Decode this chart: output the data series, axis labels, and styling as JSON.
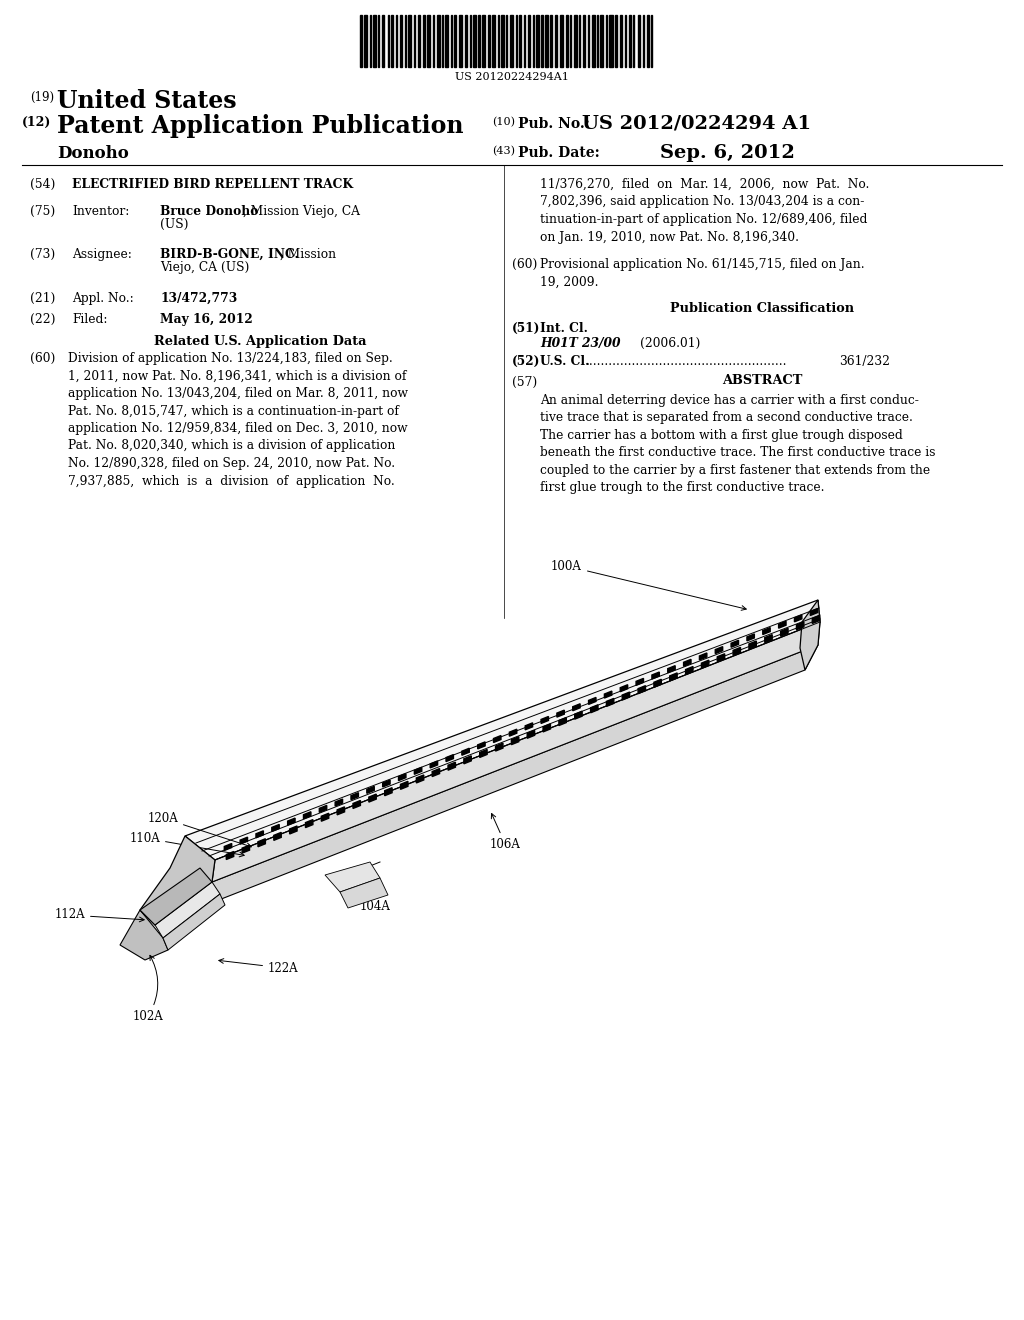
{
  "bg_color": "#ffffff",
  "barcode_text": "US 20120224294A1",
  "label_100A": "100A",
  "label_110A": "110A",
  "label_120A": "120A",
  "label_104A": "104A",
  "label_106A": "106A",
  "label_112A": "112A",
  "label_122A": "122A",
  "label_102A": "102A"
}
